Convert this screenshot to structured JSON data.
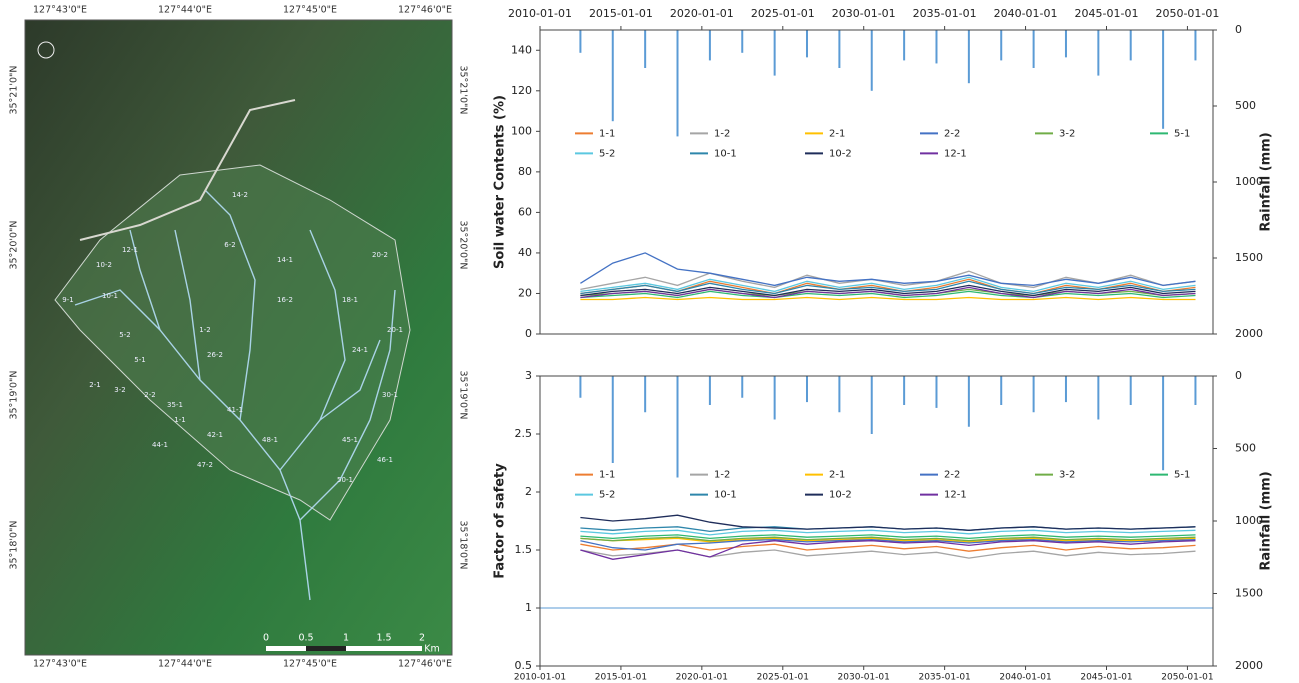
{
  "map": {
    "top_labels": [
      "127°43'0\"E",
      "127°44'0\"E",
      "127°45'0\"E",
      "127°46'0\"E"
    ],
    "bottom_labels": [
      "127°43'0\"E",
      "127°44'0\"E",
      "127°45'0\"E",
      "127°46'0\"E"
    ],
    "left_labels": [
      "35°21'0\"N",
      "35°20'0\"N",
      "35°19'0\"N",
      "35°18'0\"N"
    ],
    "right_labels": [
      "35°21'0\"N",
      "35°20'0\"N",
      "35°19'0\"N",
      "35°18'0\"N"
    ],
    "scale_labels": [
      "0",
      "0.5",
      "1",
      "1.5",
      "2"
    ],
    "scale_unit": "Km",
    "watershed_labels": [
      "12-1",
      "10-2",
      "10-1",
      "9-1",
      "5-2",
      "5-1",
      "3-2",
      "2-1",
      "2-2",
      "1-1",
      "1-2",
      "6-2",
      "14-2",
      "14-1",
      "16-2",
      "18-1",
      "20-2",
      "20-1",
      "24-1",
      "26-2",
      "30-1",
      "35-1",
      "41-1",
      "42-1",
      "44-1",
      "45-1",
      "46-1",
      "47-2",
      "48-1",
      "50-1"
    ]
  },
  "chart_data": [
    {
      "type": "line",
      "ylabel": "Soil water Contents (%)",
      "y2label": "Rainfall (mm)",
      "x": [
        "2012-07-01",
        "2014-07-01",
        "2016-07-01",
        "2018-07-01",
        "2020-07-01",
        "2022-07-01",
        "2024-07-01",
        "2026-07-01",
        "2028-07-01",
        "2030-07-01",
        "2032-07-01",
        "2034-07-01",
        "2036-07-01",
        "2038-07-01",
        "2040-07-01",
        "2042-07-01",
        "2044-07-01",
        "2046-07-01",
        "2048-07-01",
        "2050-07-01"
      ],
      "xlim": [
        "2010-01-01",
        "2051-08-01"
      ],
      "xticks": [
        "2010-01-01",
        "2015-01-01",
        "2020-01-01",
        "2025-01-01",
        "2030-01-01",
        "2035-01-01",
        "2040-01-01",
        "2045-01-01",
        "2050-01-01"
      ],
      "x_axis_position": "top",
      "ylim": [
        0,
        150
      ],
      "yticks": [
        0,
        20,
        40,
        60,
        80,
        100,
        120,
        140
      ],
      "y2lim": [
        0,
        2000
      ],
      "y2ticks": [
        0,
        500,
        1000,
        1500,
        2000
      ],
      "y2_inverted": true,
      "grid": false,
      "legend": "upper-left",
      "series": [
        {
          "name": "1-1",
          "color": "#ed7d31",
          "values": [
            20,
            22,
            24,
            21,
            26,
            23,
            20,
            25,
            22,
            24,
            21,
            23,
            27,
            22,
            20,
            24,
            22,
            25,
            21,
            23
          ]
        },
        {
          "name": "1-2",
          "color": "#a5a5a5",
          "values": [
            22,
            25,
            28,
            24,
            30,
            26,
            23,
            29,
            25,
            27,
            24,
            26,
            31,
            25,
            23,
            28,
            25,
            29,
            24,
            26
          ]
        },
        {
          "name": "2-1",
          "color": "#ffc000",
          "values": [
            17,
            17,
            18,
            17,
            18,
            17,
            17,
            18,
            17,
            18,
            17,
            17,
            18,
            17,
            17,
            18,
            17,
            18,
            17,
            17
          ]
        },
        {
          "name": "2-2",
          "color": "#4472c4",
          "values": [
            25,
            35,
            40,
            32,
            30,
            27,
            24,
            28,
            26,
            27,
            25,
            26,
            29,
            25,
            24,
            27,
            25,
            28,
            24,
            26
          ]
        },
        {
          "name": "3-2",
          "color": "#70ad47",
          "values": [
            19,
            20,
            21,
            19,
            22,
            20,
            19,
            21,
            20,
            21,
            19,
            20,
            22,
            20,
            19,
            21,
            20,
            21,
            19,
            20
          ]
        },
        {
          "name": "5-1",
          "color": "#2eb872",
          "values": [
            18,
            19,
            20,
            18,
            21,
            19,
            18,
            20,
            19,
            20,
            18,
            19,
            21,
            19,
            18,
            20,
            19,
            20,
            18,
            19
          ]
        },
        {
          "name": "5-2",
          "color": "#5bc8e0",
          "values": [
            21,
            23,
            25,
            22,
            27,
            24,
            21,
            26,
            23,
            25,
            22,
            24,
            28,
            23,
            21,
            25,
            23,
            26,
            22,
            24
          ]
        },
        {
          "name": "10-1",
          "color": "#2e86ab",
          "values": [
            20,
            22,
            24,
            21,
            25,
            22,
            20,
            24,
            22,
            23,
            21,
            22,
            26,
            22,
            20,
            23,
            22,
            24,
            21,
            22
          ]
        },
        {
          "name": "10-2",
          "color": "#1f2d5a",
          "values": [
            19,
            21,
            22,
            20,
            23,
            21,
            19,
            22,
            21,
            22,
            20,
            21,
            24,
            21,
            19,
            22,
            21,
            23,
            20,
            21
          ]
        },
        {
          "name": "12-1",
          "color": "#7030a0",
          "values": [
            18,
            20,
            21,
            19,
            22,
            20,
            18,
            21,
            20,
            21,
            19,
            20,
            23,
            20,
            18,
            21,
            20,
            22,
            19,
            20
          ]
        }
      ],
      "rainfall": {
        "axis": "y2",
        "color": "#5b9bd5",
        "values": [
          150,
          600,
          250,
          700,
          200,
          150,
          300,
          180,
          250,
          400,
          200,
          220,
          350,
          200,
          250,
          180,
          300,
          200,
          650,
          200
        ]
      }
    },
    {
      "type": "line",
      "ylabel": "Factor of safety",
      "y2label": "Rainfall (mm)",
      "x": [
        "2012-07-01",
        "2014-07-01",
        "2016-07-01",
        "2018-07-01",
        "2020-07-01",
        "2022-07-01",
        "2024-07-01",
        "2026-07-01",
        "2028-07-01",
        "2030-07-01",
        "2032-07-01",
        "2034-07-01",
        "2036-07-01",
        "2038-07-01",
        "2040-07-01",
        "2042-07-01",
        "2044-07-01",
        "2046-07-01",
        "2048-07-01",
        "2050-07-01"
      ],
      "xlim": [
        "2010-01-01",
        "2051-08-01"
      ],
      "xticks": [
        "2010-01-01",
        "2015-01-01",
        "2020-01-01",
        "2025-01-01",
        "2030-01-01",
        "2035-01-01",
        "2040-01-01",
        "2045-01-01",
        "2050-01-01"
      ],
      "x_axis_position": "bottom",
      "ylim": [
        0.5,
        3
      ],
      "yticks": [
        0.5,
        1,
        1.5,
        2,
        2.5,
        3
      ],
      "y2lim": [
        0,
        2000
      ],
      "y2ticks": [
        0,
        500,
        1000,
        1500,
        2000
      ],
      "y2_inverted": true,
      "grid": false,
      "legend": "upper-left",
      "hline": 1,
      "hline_color": "#5b9bd5",
      "series": [
        {
          "name": "1-1",
          "color": "#ed7d31",
          "values": [
            1.55,
            1.5,
            1.52,
            1.55,
            1.5,
            1.53,
            1.55,
            1.5,
            1.52,
            1.54,
            1.51,
            1.53,
            1.49,
            1.52,
            1.54,
            1.5,
            1.53,
            1.51,
            1.52,
            1.54
          ]
        },
        {
          "name": "1-2",
          "color": "#a5a5a5",
          "values": [
            1.5,
            1.45,
            1.47,
            1.5,
            1.44,
            1.48,
            1.5,
            1.45,
            1.47,
            1.49,
            1.46,
            1.48,
            1.43,
            1.47,
            1.49,
            1.45,
            1.48,
            1.46,
            1.47,
            1.49
          ]
        },
        {
          "name": "2-1",
          "color": "#ffc000",
          "values": [
            1.6,
            1.58,
            1.59,
            1.6,
            1.57,
            1.59,
            1.6,
            1.58,
            1.59,
            1.6,
            1.58,
            1.59,
            1.57,
            1.59,
            1.6,
            1.58,
            1.59,
            1.58,
            1.59,
            1.6
          ]
        },
        {
          "name": "2-2",
          "color": "#4472c4",
          "values": [
            1.58,
            1.52,
            1.5,
            1.55,
            1.56,
            1.58,
            1.59,
            1.57,
            1.58,
            1.59,
            1.57,
            1.58,
            1.56,
            1.58,
            1.59,
            1.57,
            1.58,
            1.57,
            1.58,
            1.59
          ]
        },
        {
          "name": "3-2",
          "color": "#70ad47",
          "values": [
            1.6,
            1.58,
            1.6,
            1.61,
            1.58,
            1.6,
            1.61,
            1.59,
            1.6,
            1.61,
            1.59,
            1.6,
            1.58,
            1.6,
            1.61,
            1.59,
            1.6,
            1.59,
            1.6,
            1.61
          ]
        },
        {
          "name": "5-1",
          "color": "#2eb872",
          "values": [
            1.62,
            1.6,
            1.62,
            1.63,
            1.6,
            1.62,
            1.63,
            1.61,
            1.62,
            1.63,
            1.61,
            1.62,
            1.6,
            1.62,
            1.63,
            1.61,
            1.62,
            1.61,
            1.62,
            1.63
          ]
        },
        {
          "name": "5-2",
          "color": "#5bc8e0",
          "values": [
            1.66,
            1.64,
            1.66,
            1.67,
            1.63,
            1.66,
            1.67,
            1.65,
            1.66,
            1.67,
            1.65,
            1.66,
            1.64,
            1.66,
            1.67,
            1.65,
            1.66,
            1.65,
            1.66,
            1.67
          ]
        },
        {
          "name": "10-1",
          "color": "#2e86ab",
          "values": [
            1.69,
            1.67,
            1.69,
            1.7,
            1.66,
            1.69,
            1.7,
            1.68,
            1.69,
            1.7,
            1.68,
            1.69,
            1.67,
            1.69,
            1.7,
            1.68,
            1.69,
            1.68,
            1.69,
            1.7
          ]
        },
        {
          "name": "10-2",
          "color": "#1f2d5a",
          "values": [
            1.78,
            1.75,
            1.77,
            1.8,
            1.74,
            1.7,
            1.69,
            1.68,
            1.69,
            1.7,
            1.68,
            1.69,
            1.67,
            1.69,
            1.7,
            1.68,
            1.69,
            1.68,
            1.69,
            1.7
          ]
        },
        {
          "name": "12-1",
          "color": "#7030a0",
          "values": [
            1.5,
            1.42,
            1.46,
            1.5,
            1.44,
            1.55,
            1.58,
            1.55,
            1.57,
            1.58,
            1.56,
            1.57,
            1.54,
            1.57,
            1.58,
            1.56,
            1.57,
            1.55,
            1.57,
            1.58
          ]
        }
      ],
      "rainfall": {
        "axis": "y2",
        "color": "#5b9bd5",
        "values": [
          150,
          600,
          250,
          700,
          200,
          150,
          300,
          180,
          250,
          400,
          200,
          220,
          350,
          200,
          250,
          180,
          300,
          200,
          650,
          200
        ]
      }
    }
  ]
}
